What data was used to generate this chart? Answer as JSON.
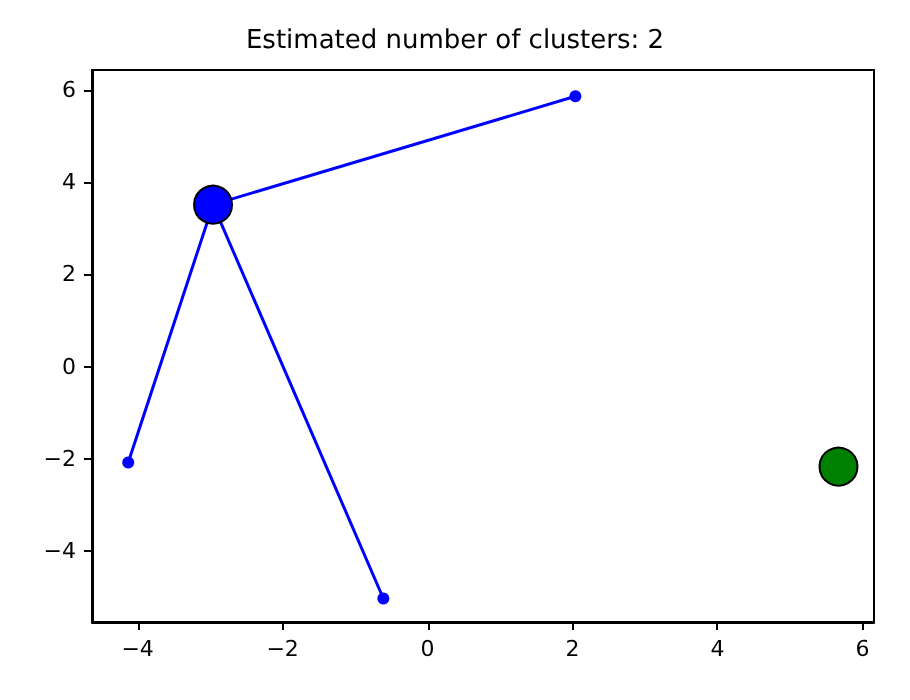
{
  "chart_data": {
    "type": "scatter",
    "title": "Estimated number of clusters: 2",
    "xlim": [
      -4.63,
      6.16
    ],
    "xticks": [
      -4,
      -2,
      0,
      2,
      4,
      6
    ],
    "ylim": [
      -5.54,
      6.43
    ],
    "yticks": [
      -4,
      -2,
      0,
      2,
      4,
      6
    ],
    "grid": false,
    "series": [
      {
        "type": "line",
        "color": "#0000ff",
        "marker": "none",
        "x": [
          -2.96,
          2.04
        ],
        "values": [
          3.51,
          5.86
        ]
      },
      {
        "type": "line",
        "color": "#0000ff",
        "marker": "none",
        "x": [
          -2.96,
          -4.13
        ],
        "values": [
          3.51,
          -2.08
        ]
      },
      {
        "type": "line",
        "color": "#0000ff",
        "marker": "none",
        "x": [
          -2.96,
          -0.61
        ],
        "values": [
          3.51,
          -5.03
        ]
      },
      {
        "color": "#0000ff",
        "marker": "circle",
        "x": [
          2.04,
          -4.13,
          -0.61
        ],
        "values": [
          5.86,
          -2.08,
          -5.03
        ]
      },
      {
        "type": "bubble",
        "color": "#0000ff",
        "marker": "circle",
        "x": [
          -2.96
        ],
        "values": [
          3.51
        ],
        "sizes": [
          1
        ]
      },
      {
        "type": "bubble",
        "color": "#008000",
        "marker": "circle",
        "x": [
          5.67
        ],
        "values": [
          -2.17
        ],
        "sizes": [
          1
        ]
      }
    ]
  }
}
